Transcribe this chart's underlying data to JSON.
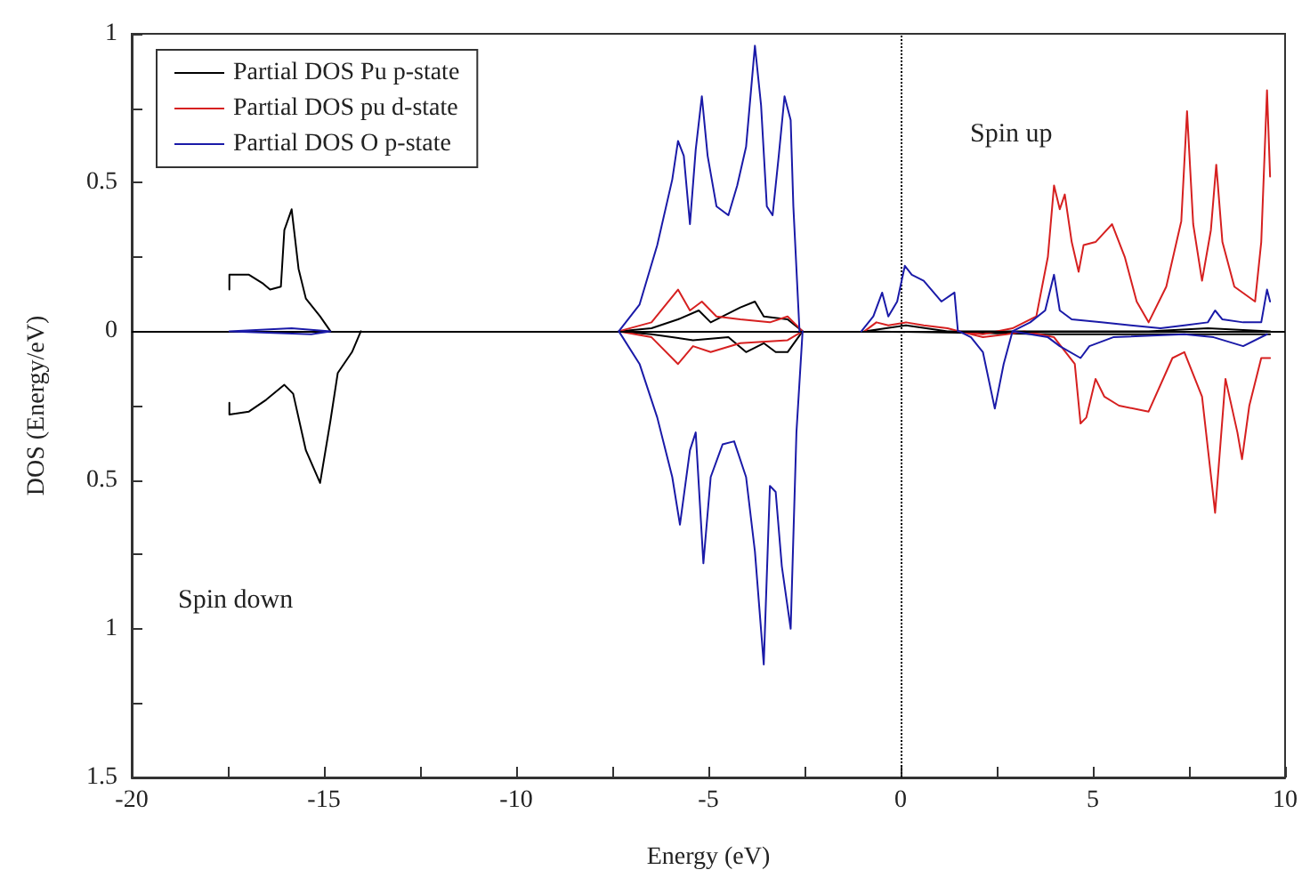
{
  "chart_data": {
    "type": "line",
    "xlabel": "Energy (eV)",
    "ylabel": "DOS (Energy/eV)",
    "xlim": [
      -20,
      10
    ],
    "xticks": [
      -20,
      {
        "value": -17.5,
        "label": null
      },
      -15,
      {
        "value": -12.5,
        "label": null
      },
      -10,
      {
        "value": -7.5,
        "label": null
      },
      -5,
      {
        "value": -2.5,
        "label": null
      },
      0,
      {
        "value": 2.5,
        "label": null
      },
      5,
      {
        "value": 7.5,
        "label": null
      },
      10
    ],
    "ylim": [
      -1.5,
      1
    ],
    "yticks": [
      1,
      {
        "value": 0.75,
        "label": null
      },
      0.5,
      {
        "value": 0.25,
        "label": null
      },
      0,
      {
        "value": -0.25,
        "label": null
      },
      {
        "value": -0.5,
        "label": "0.5"
      },
      {
        "value": -0.75,
        "label": null
      },
      {
        "value": -1,
        "label": "1"
      },
      {
        "value": -1.25,
        "label": null
      },
      {
        "value": -1.5,
        "label": "1.5"
      }
    ],
    "grid": false,
    "legend": "top left",
    "marker": "none",
    "line_style": "solid",
    "annotations": [
      "Spin up",
      "Spin down"
    ],
    "ref_lines": [
      {
        "axis": "x",
        "value": 0,
        "color": "#000000",
        "line_style": "dotted"
      },
      {
        "axis": "y",
        "value": 0,
        "color": "#000000",
        "line_style": "solid"
      }
    ],
    "series": [
      {
        "name": "Partial DOS Pu p-state",
        "color": "#000000",
        "x": [
          -17.46,
          -17.46,
          -16.95,
          -16.58,
          -16.4,
          -16.12,
          -16.03,
          -15.84,
          -15.66,
          -15.47,
          -15.1,
          -14.83,
          null,
          -17.46,
          -17.46,
          -16.95,
          -16.5,
          -16.03,
          -15.8,
          -15.47,
          -15.1,
          -14.83,
          -14.64,
          -14.27,
          -14.04,
          null,
          -7.33,
          -6.48,
          -5.79,
          -5.25,
          -4.94,
          -4.17,
          -3.79,
          -3.56,
          -2.94,
          -2.55,
          null,
          -7.33,
          -6.48,
          -5.4,
          -4.48,
          -4.02,
          -3.56,
          -3.25,
          -2.94,
          -2.55,
          null,
          -0.94,
          0.14,
          1.22,
          3.99,
          6.45,
          7.99,
          9.61,
          null,
          -0.94,
          3.99,
          7.99,
          9.61
        ],
        "values": [
          0.14,
          0.19,
          0.19,
          0.16,
          0.14,
          0.15,
          0.34,
          0.41,
          0.21,
          0.11,
          0.05,
          0,
          null,
          -0.24,
          -0.28,
          -0.27,
          -0.23,
          -0.18,
          -0.21,
          -0.4,
          -0.51,
          -0.3,
          -0.14,
          -0.07,
          0,
          null,
          0,
          0.01,
          0.04,
          0.07,
          0.03,
          0.08,
          0.1,
          0.05,
          0.04,
          0,
          null,
          0,
          -0.01,
          -0.03,
          -0.02,
          -0.07,
          -0.04,
          -0.07,
          -0.07,
          0,
          null,
          0,
          0.02,
          0,
          0,
          0,
          0.01,
          0,
          null,
          0,
          -0.01,
          -0.01,
          -0.01
        ]
      },
      {
        "name": "Partial DOS pu d-state",
        "color": "#d62020",
        "x": [
          -7.33,
          -6.48,
          -5.79,
          -5.48,
          -5.17,
          -4.79,
          -4.17,
          -3.4,
          -2.94,
          -2.55,
          null,
          -7.33,
          -6.48,
          -5.79,
          -5.4,
          -4.94,
          -4.17,
          -2.94,
          -2.55,
          null,
          -0.94,
          -0.63,
          -0.32,
          0.14,
          0.6,
          1.22,
          1.52,
          2.14,
          2.91,
          3.53,
          3.83,
          3.99,
          4.14,
          4.27,
          4.45,
          4.63,
          4.76,
          5.07,
          5.5,
          5.83,
          6.14,
          6.45,
          6.91,
          7.3,
          7.45,
          7.61,
          7.84,
          8.07,
          8.21,
          8.37,
          8.68,
          9.22,
          9.38,
          9.53,
          9.61,
          null,
          1.52,
          2.14,
          2.76,
          3.22,
          3.99,
          4.53,
          4.68,
          4.83,
          5.07,
          5.3,
          5.68,
          6.45,
          7.07,
          7.38,
          7.84,
          8.18,
          8.45,
          8.76,
          8.88,
          9.07,
          9.38,
          9.61
        ],
        "values": [
          0,
          0.03,
          0.14,
          0.07,
          0.1,
          0.05,
          0.04,
          0.03,
          0.05,
          0,
          null,
          0,
          -0.02,
          -0.11,
          -0.05,
          -0.07,
          -0.04,
          -0.03,
          0,
          null,
          0,
          0.03,
          0.02,
          0.03,
          0.02,
          0.01,
          0,
          -0.01,
          0.01,
          0.05,
          0.25,
          0.49,
          0.41,
          0.46,
          0.3,
          0.2,
          0.29,
          0.3,
          0.36,
          0.25,
          0.1,
          0.03,
          0.15,
          0.37,
          0.74,
          0.36,
          0.17,
          0.34,
          0.56,
          0.3,
          0.15,
          0.1,
          0.3,
          0.81,
          0.52,
          null,
          0,
          -0.02,
          -0.01,
          0,
          -0.02,
          -0.11,
          -0.31,
          -0.29,
          -0.16,
          -0.22,
          -0.25,
          -0.27,
          -0.09,
          -0.07,
          -0.22,
          -0.61,
          -0.16,
          -0.34,
          -0.43,
          -0.25,
          -0.09,
          -0.09
        ]
      },
      {
        "name": "Partial DOS O p-state",
        "color": "#1a1aa8",
        "x": [
          -17.46,
          -15.84,
          -14.83,
          null,
          -17.46,
          -15.33,
          -14.83,
          null,
          -7.33,
          -6.79,
          -6.33,
          -5.94,
          -5.79,
          -5.64,
          -5.48,
          -5.33,
          -5.17,
          -5.02,
          -4.79,
          -4.48,
          -4.25,
          -4.02,
          -3.79,
          -3.63,
          -3.48,
          -3.33,
          -3.17,
          -3.02,
          -2.86,
          -2.79,
          -2.63,
          null,
          -7.33,
          -6.79,
          -6.33,
          -5.94,
          -5.74,
          -5.48,
          -5.33,
          -5.13,
          -4.94,
          -4.63,
          -4.33,
          -4.02,
          -3.79,
          -3.56,
          -3.4,
          -3.25,
          -3.09,
          -2.86,
          -2.71,
          -2.55,
          null,
          -1.02,
          -0.71,
          -0.48,
          -0.32,
          -0.09,
          0.11,
          0.29,
          0.6,
          1.06,
          1.4,
          1.49,
          null,
          1.52,
          1.83,
          2.14,
          2.45,
          2.68,
          2.91,
          3.83,
          4.14,
          4.68,
          4.91,
          5.53,
          7.38,
          8.14,
          8.91,
          9.53,
          null,
          2.91,
          3.37,
          3.76,
          3.99,
          4.14,
          4.45,
          5.22,
          5.99,
          6.76,
          7.38,
          7.99,
          8.18,
          8.37,
          8.91,
          9.38,
          9.53,
          9.61
        ],
        "values": [
          0,
          0.01,
          0,
          null,
          0,
          -0.01,
          0,
          null,
          0,
          0.09,
          0.29,
          0.51,
          0.64,
          0.59,
          0.36,
          0.61,
          0.79,
          0.59,
          0.42,
          0.39,
          0.49,
          0.62,
          0.96,
          0.76,
          0.42,
          0.39,
          0.59,
          0.79,
          0.71,
          0.42,
          0,
          null,
          0,
          -0.11,
          -0.29,
          -0.49,
          -0.65,
          -0.4,
          -0.34,
          -0.78,
          -0.49,
          -0.38,
          -0.37,
          -0.49,
          -0.74,
          -1.12,
          -0.52,
          -0.54,
          -0.79,
          -1,
          -0.34,
          0,
          null,
          0,
          0.05,
          0.13,
          0.05,
          0.1,
          0.22,
          0.19,
          0.17,
          0.1,
          0.13,
          0,
          null,
          0,
          -0.02,
          -0.07,
          -0.26,
          -0.11,
          0,
          -0.02,
          -0.05,
          -0.09,
          -0.05,
          -0.02,
          -0.01,
          -0.02,
          -0.05,
          -0.01,
          null,
          0,
          0.03,
          0.07,
          0.19,
          0.07,
          0.04,
          0.03,
          0.02,
          0.01,
          0.02,
          0.03,
          0.07,
          0.04,
          0.03,
          0.03,
          0.14,
          0.1
        ]
      }
    ]
  }
}
